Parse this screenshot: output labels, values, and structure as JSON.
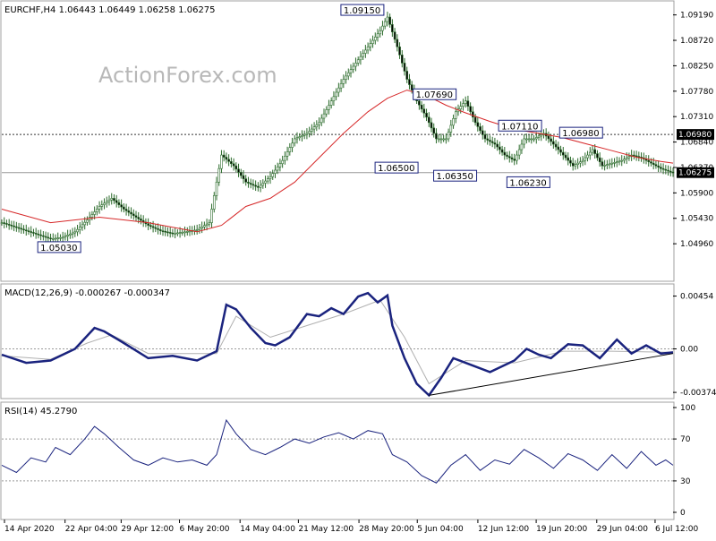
{
  "chart_data": [
    {
      "type": "candlestick",
      "panel": "price",
      "title": "EURCHF,H4  1.06443 1.06449 1.06258 1.06275",
      "watermark": "ActionForex.com",
      "ylim": [
        1.043,
        1.093
      ],
      "y_ticks": [
        "1.09190",
        "1.08720",
        "1.08250",
        "1.07780",
        "1.07310",
        "1.06840",
        "1.06370",
        "1.05900",
        "1.05430",
        "1.04960"
      ],
      "current_price": "1.06275",
      "horizontal_level": "1.06980",
      "annotations": [
        {
          "label": "1.09150",
          "value": 1.0915
        },
        {
          "label": "1.07690",
          "value": 1.0769
        },
        {
          "label": "1.07110",
          "value": 1.0711
        },
        {
          "label": "1.06980",
          "value": 1.0698
        },
        {
          "label": "1.06500",
          "value": 1.065
        },
        {
          "label": "1.06350",
          "value": 1.0635
        },
        {
          "label": "1.06230",
          "value": 1.0623
        },
        {
          "label": "1.05030",
          "value": 1.0503
        }
      ],
      "price_path": [
        [
          0,
          1.0535
        ],
        [
          10,
          1.052
        ],
        [
          20,
          1.0505
        ],
        [
          25,
          1.0508
        ],
        [
          30,
          1.0518
        ],
        [
          35,
          1.054
        ],
        [
          40,
          1.0565
        ],
        [
          45,
          1.058
        ],
        [
          50,
          1.056
        ],
        [
          55,
          1.0545
        ],
        [
          60,
          1.053
        ],
        [
          65,
          1.052
        ],
        [
          70,
          1.0515
        ],
        [
          75,
          1.0518
        ],
        [
          80,
          1.0522
        ],
        [
          85,
          1.0535
        ],
        [
          90,
          1.066
        ],
        [
          95,
          1.064
        ],
        [
          100,
          1.061
        ],
        [
          105,
          1.06
        ],
        [
          110,
          1.062
        ],
        [
          115,
          1.065
        ],
        [
          120,
          1.069
        ],
        [
          125,
          1.07
        ],
        [
          130,
          1.072
        ],
        [
          135,
          1.076
        ],
        [
          140,
          1.08
        ],
        [
          145,
          1.083
        ],
        [
          150,
          1.086
        ],
        [
          155,
          1.089
        ],
        [
          158,
          1.0915
        ],
        [
          162,
          1.086
        ],
        [
          166,
          1.08
        ],
        [
          170,
          1.076
        ],
        [
          174,
          1.073
        ],
        [
          178,
          1.069
        ],
        [
          182,
          1.069
        ],
        [
          186,
          1.074
        ],
        [
          190,
          1.076
        ],
        [
          194,
          1.072
        ],
        [
          198,
          1.069
        ],
        [
          202,
          1.068
        ],
        [
          206,
          1.066
        ],
        [
          210,
          1.065
        ],
        [
          214,
          1.069
        ],
        [
          218,
          1.069
        ],
        [
          222,
          1.07
        ],
        [
          226,
          1.068
        ],
        [
          230,
          1.066
        ],
        [
          234,
          1.064
        ],
        [
          238,
          1.065
        ],
        [
          242,
          1.067
        ],
        [
          246,
          1.064
        ],
        [
          250,
          1.0645
        ],
        [
          254,
          1.065
        ],
        [
          258,
          1.066
        ],
        [
          262,
          1.0655
        ],
        [
          266,
          1.0645
        ],
        [
          270,
          1.0635
        ],
        [
          275,
          1.0627
        ]
      ],
      "ma_path": [
        [
          0,
          1.056
        ],
        [
          20,
          1.0535
        ],
        [
          40,
          1.0545
        ],
        [
          60,
          1.0535
        ],
        [
          80,
          1.0518
        ],
        [
          90,
          1.053
        ],
        [
          100,
          1.0565
        ],
        [
          110,
          1.058
        ],
        [
          120,
          1.061
        ],
        [
          130,
          1.0655
        ],
        [
          140,
          1.07
        ],
        [
          150,
          1.074
        ],
        [
          158,
          1.0765
        ],
        [
          166,
          1.078
        ],
        [
          174,
          1.077
        ],
        [
          182,
          1.0752
        ],
        [
          190,
          1.0738
        ],
        [
          200,
          1.0722
        ],
        [
          210,
          1.0708
        ],
        [
          220,
          1.07
        ],
        [
          230,
          1.0692
        ],
        [
          240,
          1.068
        ],
        [
          250,
          1.0668
        ],
        [
          260,
          1.0656
        ],
        [
          270,
          1.0648
        ],
        [
          275,
          1.0645
        ]
      ]
    },
    {
      "type": "line",
      "panel": "macd",
      "title": "MACD(12,26,9) -0.000267 -0.000347",
      "ylim": [
        -0.0042,
        0.0052
      ],
      "y_ticks": [
        "0.00454",
        "0.00",
        "-0.003745"
      ],
      "series": [
        {
          "values": [
            [
              0,
              -0.0005
            ],
            [
              10,
              -0.0012
            ],
            [
              20,
              -0.001
            ],
            [
              30,
              0.0
            ],
            [
              38,
              0.0018
            ],
            [
              42,
              0.0015
            ],
            [
              50,
              0.0005
            ],
            [
              60,
              -0.0008
            ],
            [
              70,
              -0.0006
            ],
            [
              80,
              -0.001
            ],
            [
              88,
              -0.0002
            ],
            [
              92,
              0.0038
            ],
            [
              96,
              0.0034
            ],
            [
              102,
              0.0018
            ],
            [
              108,
              0.0005
            ],
            [
              112,
              0.0003
            ],
            [
              118,
              0.001
            ],
            [
              125,
              0.003
            ],
            [
              130,
              0.0028
            ],
            [
              135,
              0.0035
            ],
            [
              140,
              0.003
            ],
            [
              146,
              0.0045
            ],
            [
              150,
              0.0048
            ],
            [
              154,
              0.004
            ],
            [
              158,
              0.0046
            ],
            [
              160,
              0.002
            ],
            [
              165,
              -0.0008
            ],
            [
              170,
              -0.003
            ],
            [
              175,
              -0.004
            ],
            [
              180,
              -0.0025
            ],
            [
              185,
              -0.0008
            ],
            [
              190,
              -0.0012
            ],
            [
              200,
              -0.002
            ],
            [
              210,
              -0.001
            ],
            [
              215,
              0.0
            ],
            [
              220,
              -0.0005
            ],
            [
              225,
              -0.0008
            ],
            [
              232,
              0.0004
            ],
            [
              238,
              0.0003
            ],
            [
              245,
              -0.0008
            ],
            [
              252,
              0.0008
            ],
            [
              258,
              -0.0004
            ],
            [
              264,
              0.0003
            ],
            [
              270,
              -0.0004
            ],
            [
              275,
              -0.0003
            ]
          ]
        },
        {
          "values": [
            [
              0,
              -0.0006
            ],
            [
              20,
              -0.0009
            ],
            [
              35,
              0.0005
            ],
            [
              45,
              0.0012
            ],
            [
              60,
              -0.0004
            ],
            [
              88,
              -0.0004
            ],
            [
              96,
              0.0028
            ],
            [
              110,
              0.001
            ],
            [
              125,
              0.002
            ],
            [
              140,
              0.003
            ],
            [
              155,
              0.0042
            ],
            [
              165,
              0.001
            ],
            [
              175,
              -0.003
            ],
            [
              190,
              -0.001
            ],
            [
              210,
              -0.0012
            ],
            [
              230,
              -0.0002
            ],
            [
              250,
              -0.0002
            ],
            [
              275,
              -0.0003
            ]
          ]
        }
      ],
      "trendline": [
        [
          175,
          -0.004
        ],
        [
          275,
          -0.0004
        ]
      ]
    },
    {
      "type": "line",
      "panel": "rsi",
      "title": "RSI(14) 45.2790",
      "ylim": [
        0,
        100
      ],
      "y_ticks": [
        "100",
        "70",
        "30",
        "0"
      ],
      "levels": [
        70,
        30
      ],
      "series": [
        {
          "values": [
            [
              0,
              45
            ],
            [
              6,
              38
            ],
            [
              12,
              52
            ],
            [
              18,
              48
            ],
            [
              22,
              62
            ],
            [
              28,
              55
            ],
            [
              34,
              70
            ],
            [
              38,
              82
            ],
            [
              42,
              75
            ],
            [
              48,
              62
            ],
            [
              54,
              50
            ],
            [
              60,
              45
            ],
            [
              66,
              52
            ],
            [
              72,
              48
            ],
            [
              78,
              50
            ],
            [
              84,
              45
            ],
            [
              88,
              55
            ],
            [
              92,
              88
            ],
            [
              96,
              75
            ],
            [
              102,
              60
            ],
            [
              108,
              55
            ],
            [
              114,
              62
            ],
            [
              120,
              70
            ],
            [
              126,
              66
            ],
            [
              132,
              72
            ],
            [
              138,
              76
            ],
            [
              144,
              70
            ],
            [
              150,
              78
            ],
            [
              156,
              75
            ],
            [
              160,
              55
            ],
            [
              166,
              48
            ],
            [
              172,
              35
            ],
            [
              178,
              28
            ],
            [
              184,
              45
            ],
            [
              190,
              55
            ],
            [
              196,
              40
            ],
            [
              202,
              50
            ],
            [
              208,
              46
            ],
            [
              214,
              60
            ],
            [
              220,
              52
            ],
            [
              226,
              42
            ],
            [
              232,
              56
            ],
            [
              238,
              50
            ],
            [
              244,
              40
            ],
            [
              250,
              55
            ],
            [
              256,
              42
            ],
            [
              262,
              58
            ],
            [
              268,
              45
            ],
            [
              272,
              50
            ],
            [
              275,
              45
            ]
          ]
        }
      ]
    }
  ],
  "x_axis": {
    "range": [
      0,
      275
    ],
    "ticks": [
      {
        "label": "14 Apr 2020",
        "x": 2
      },
      {
        "label": "22 Apr 04:00",
        "x": 29
      },
      {
        "label": "29 Apr 12:00",
        "x": 54
      },
      {
        "label": "6 May 20:00",
        "x": 80
      },
      {
        "label": "14 May 04:00",
        "x": 107
      },
      {
        "label": "21 May 12:00",
        "x": 133
      },
      {
        "label": "28 May 20:00",
        "x": 160
      },
      {
        "label": "5 Jun 04:00",
        "x": 186
      },
      {
        "label": "12 Jun 12:00",
        "x": 213
      },
      {
        "label": "19 Jun 20:00",
        "x": 239
      },
      {
        "label": "29 Jun 04:00",
        "x": 266
      },
      {
        "label": "6 Jul 12:00",
        "x": 292
      }
    ]
  },
  "colors": {
    "candle": "#2b6b2b",
    "ma": "#d62728",
    "macd": "#1a237e",
    "signal": "#b0b0b0",
    "grid": "#a0a0a0",
    "annotation_border": "#1a237e",
    "axis_text": "#000000"
  }
}
